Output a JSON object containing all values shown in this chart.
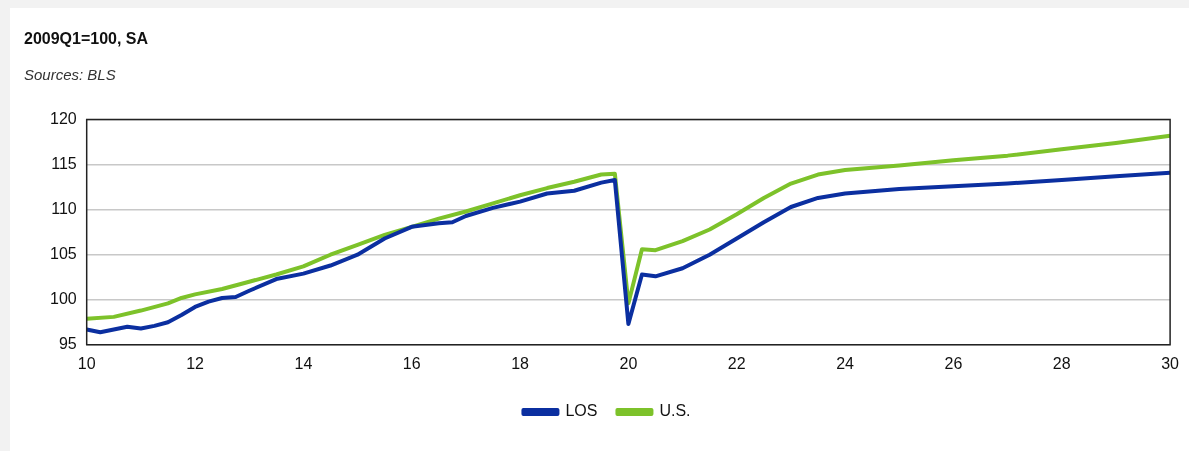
{
  "chart_data": {
    "type": "line",
    "title": "2009Q1=100, SA",
    "subtitle": "Sources: BLS",
    "xlim": [
      10,
      30
    ],
    "xticks": [
      10,
      12,
      14,
      16,
      18,
      20,
      22,
      24,
      26,
      28,
      30
    ],
    "ylim": [
      95,
      120
    ],
    "yticks": [
      95,
      100,
      105,
      110,
      115,
      120
    ],
    "grid": "y",
    "legend": "bottom",
    "marker": "none",
    "line_style": "solid",
    "series": [
      {
        "name": "LOS",
        "color": "#0b2fa0",
        "x": [
          10,
          10.25,
          10.5,
          10.75,
          11,
          11.25,
          11.5,
          11.75,
          12,
          12.25,
          12.5,
          12.75,
          13,
          13.5,
          14,
          14.5,
          15,
          15.5,
          16,
          16.5,
          16.75,
          17,
          17.5,
          18,
          18.5,
          19,
          19.5,
          19.75,
          20,
          20.25,
          20.5,
          21,
          21.5,
          22,
          22.5,
          23,
          23.5,
          24,
          25,
          26,
          27,
          28,
          29,
          30
        ],
        "values": [
          96.7,
          96.4,
          96.7,
          97.0,
          96.8,
          97.1,
          97.5,
          98.3,
          99.2,
          99.8,
          100.2,
          100.3,
          101.0,
          102.3,
          102.9,
          103.8,
          105.0,
          106.8,
          108.1,
          108.5,
          108.6,
          109.3,
          110.2,
          110.9,
          111.8,
          112.1,
          113.0,
          113.3,
          97.3,
          102.8,
          102.6,
          103.5,
          105.0,
          106.8,
          108.6,
          110.3,
          111.3,
          111.8,
          112.3,
          112.6,
          112.9,
          113.3,
          113.7,
          114.1
        ]
      },
      {
        "name": "U.S.",
        "color": "#7dc22a",
        "x": [
          10,
          10.5,
          11,
          11.5,
          11.75,
          12,
          12.5,
          13,
          13.5,
          14,
          14.5,
          15,
          15.5,
          16,
          16.5,
          17,
          17.5,
          18,
          18.5,
          19,
          19.5,
          19.75,
          20,
          20.25,
          20.5,
          21,
          21.5,
          22,
          22.5,
          23,
          23.5,
          24,
          25,
          26,
          27,
          28,
          29,
          30
        ],
        "values": [
          97.9,
          98.1,
          98.8,
          99.6,
          100.2,
          100.6,
          101.2,
          102.0,
          102.8,
          103.7,
          105.0,
          106.1,
          107.2,
          108.1,
          109.0,
          109.8,
          110.7,
          111.6,
          112.4,
          113.1,
          113.9,
          114.0,
          99.6,
          105.6,
          105.5,
          106.5,
          107.8,
          109.5,
          111.3,
          112.9,
          113.9,
          114.4,
          114.9,
          115.5,
          116.0,
          116.7,
          117.4,
          118.2
        ]
      }
    ]
  }
}
